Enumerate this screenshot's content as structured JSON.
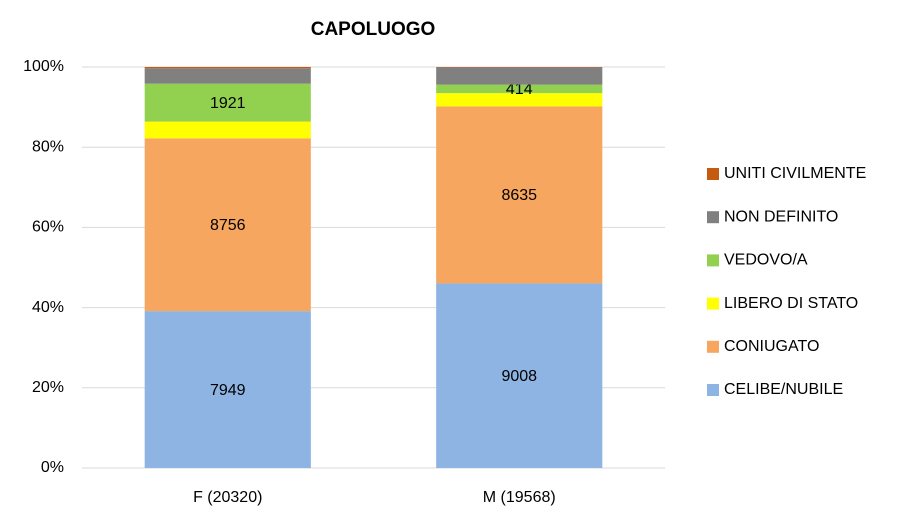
{
  "chart_data": {
    "type": "bar",
    "stacked": "percent",
    "title": "CAPOLUOGO",
    "categories": [
      "F (20320)",
      "M (19568)"
    ],
    "series": [
      {
        "name": "CELIBE/NUBILE",
        "color": "#8eb4e3",
        "values": [
          7949,
          9008
        ],
        "value_labels": [
          "7949",
          "9008"
        ]
      },
      {
        "name": "CONIUGATO",
        "color": "#f7a660",
        "values": [
          8756,
          8635
        ],
        "value_labels": [
          "8756",
          "8635"
        ]
      },
      {
        "name": "LIBERO DI STATO",
        "color": "#ffff00",
        "values": [
          850,
          650
        ],
        "value_labels": [
          null,
          null
        ]
      },
      {
        "name": "VEDOVO/A",
        "color": "#92d050",
        "values": [
          1921,
          414
        ],
        "value_labels": [
          "1921",
          "414"
        ]
      },
      {
        "name": "NON DEFINITO",
        "color": "#808080",
        "values": [
          780,
          840
        ],
        "value_labels": [
          null,
          null
        ]
      },
      {
        "name": "UNITI CIVILMENTE",
        "color": "#c55a11",
        "values": [
          64,
          21
        ],
        "value_labels": [
          null,
          null
        ]
      }
    ],
    "ylim": [
      0,
      100
    ],
    "yticks": [
      {
        "value": 0,
        "label": "0%"
      },
      {
        "value": 20,
        "label": "20%"
      },
      {
        "value": 40,
        "label": "40%"
      },
      {
        "value": 60,
        "label": "60%"
      },
      {
        "value": 80,
        "label": "80%"
      },
      {
        "value": 100,
        "label": "100%"
      }
    ],
    "grid": true,
    "legend": "right"
  }
}
